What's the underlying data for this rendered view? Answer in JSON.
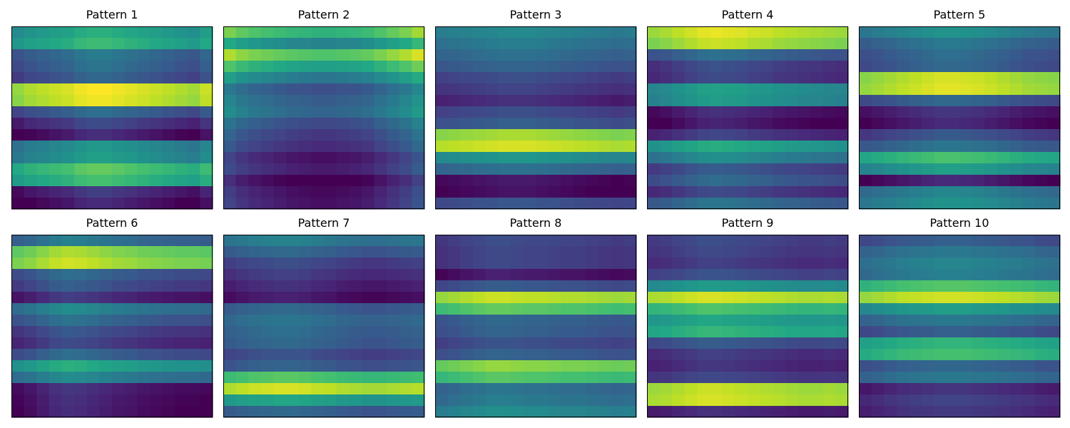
{
  "chart_data": [
    {
      "type": "heatmap",
      "title": "Pattern 1",
      "rows": 16,
      "cols": 16,
      "colormap": "viridis",
      "value_range": [
        0,
        1
      ],
      "grid": false,
      "row_levels": [
        0.55,
        0.6,
        0.33,
        0.3,
        0.25,
        0.92,
        0.9,
        0.28,
        0.15,
        0.05,
        0.45,
        0.48,
        0.68,
        0.62,
        0.1,
        0.04
      ],
      "col_mod": [
        -0.08,
        -0.04,
        -0.02,
        0.0,
        0.02,
        0.06,
        0.08,
        0.08,
        0.06,
        0.04,
        0.02,
        0.0,
        -0.02,
        -0.04,
        -0.06,
        0.0
      ]
    },
    {
      "type": "heatmap",
      "title": "Pattern 2",
      "rows": 16,
      "cols": 16,
      "colormap": "viridis",
      "value_range": [
        0,
        1
      ],
      "grid": false,
      "row_levels": [
        0.7,
        0.5,
        0.78,
        0.62,
        0.45,
        0.3,
        0.35,
        0.38,
        0.28,
        0.22,
        0.18,
        0.1,
        0.13,
        0.03,
        0.08,
        0.1
      ],
      "col_mod": [
        0.1,
        0.05,
        0.02,
        0.0,
        -0.02,
        -0.04,
        -0.05,
        -0.06,
        -0.06,
        -0.05,
        -0.04,
        -0.02,
        0.02,
        0.06,
        0.1,
        0.16
      ]
    },
    {
      "type": "heatmap",
      "title": "Pattern 3",
      "rows": 16,
      "cols": 16,
      "colormap": "viridis",
      "value_range": [
        0,
        1
      ],
      "grid": false,
      "row_levels": [
        0.45,
        0.4,
        0.35,
        0.3,
        0.22,
        0.18,
        0.12,
        0.22,
        0.28,
        0.85,
        0.92,
        0.5,
        0.35,
        0.05,
        0.03,
        0.25
      ],
      "col_mod": [
        -0.03,
        -0.02,
        -0.01,
        0.0,
        0.01,
        0.02,
        0.02,
        0.02,
        0.01,
        0.0,
        -0.01,
        -0.02,
        -0.03,
        -0.04,
        -0.05,
        -0.04
      ]
    },
    {
      "type": "heatmap",
      "title": "Pattern 4",
      "rows": 16,
      "cols": 16,
      "colormap": "viridis",
      "value_range": [
        0,
        1
      ],
      "grid": false,
      "row_levels": [
        0.9,
        0.85,
        0.3,
        0.18,
        0.16,
        0.5,
        0.48,
        0.07,
        0.03,
        0.14,
        0.55,
        0.42,
        0.22,
        0.28,
        0.16,
        0.32
      ],
      "col_mod": [
        -0.05,
        -0.03,
        0.0,
        0.03,
        0.06,
        0.07,
        0.06,
        0.05,
        0.03,
        0.02,
        0.0,
        -0.01,
        -0.02,
        -0.03,
        -0.04,
        -0.05
      ]
    },
    {
      "type": "heatmap",
      "title": "Pattern 5",
      "rows": 16,
      "cols": 16,
      "colormap": "viridis",
      "value_range": [
        0,
        1
      ],
      "grid": false,
      "row_levels": [
        0.45,
        0.35,
        0.3,
        0.28,
        0.88,
        0.9,
        0.28,
        0.1,
        0.06,
        0.22,
        0.33,
        0.65,
        0.5,
        0.06,
        0.4,
        0.45
      ],
      "col_mod": [
        -0.06,
        -0.04,
        -0.02,
        0.0,
        0.02,
        0.04,
        0.06,
        0.06,
        0.05,
        0.04,
        0.02,
        0.0,
        -0.02,
        -0.04,
        -0.05,
        -0.06
      ]
    },
    {
      "type": "heatmap",
      "title": "Pattern 6",
      "rows": 16,
      "cols": 16,
      "colormap": "viridis",
      "value_range": [
        0,
        1
      ],
      "grid": false,
      "row_levels": [
        0.35,
        0.8,
        0.85,
        0.28,
        0.22,
        0.1,
        0.4,
        0.3,
        0.2,
        0.15,
        0.28,
        0.55,
        0.4,
        0.08,
        0.06,
        0.05
      ],
      "col_mod": [
        -0.05,
        -0.02,
        0.02,
        0.06,
        0.08,
        0.07,
        0.05,
        0.03,
        0.01,
        0.0,
        -0.02,
        -0.03,
        -0.04,
        -0.05,
        -0.05,
        -0.06
      ]
    },
    {
      "type": "heatmap",
      "title": "Pattern 7",
      "rows": 16,
      "cols": 16,
      "colormap": "viridis",
      "value_range": [
        0,
        1
      ],
      "grid": false,
      "row_levels": [
        0.4,
        0.3,
        0.2,
        0.15,
        0.1,
        0.05,
        0.3,
        0.35,
        0.32,
        0.3,
        0.22,
        0.28,
        0.7,
        0.9,
        0.55,
        0.3
      ],
      "col_mod": [
        -0.02,
        0.0,
        0.02,
        0.03,
        0.04,
        0.04,
        0.03,
        0.01,
        0.0,
        -0.02,
        -0.03,
        -0.04,
        -0.04,
        -0.03,
        -0.02,
        -0.01
      ]
    },
    {
      "type": "heatmap",
      "title": "Pattern 8",
      "rows": 16,
      "cols": 16,
      "colormap": "viridis",
      "value_range": [
        0,
        1
      ],
      "grid": false,
      "row_levels": [
        0.2,
        0.18,
        0.18,
        0.05,
        0.25,
        0.88,
        0.72,
        0.3,
        0.28,
        0.22,
        0.28,
        0.8,
        0.7,
        0.35,
        0.38,
        0.45
      ],
      "col_mod": [
        -0.04,
        -0.02,
        0.0,
        0.02,
        0.04,
        0.04,
        0.03,
        0.02,
        0.02,
        0.01,
        0.0,
        0.0,
        -0.01,
        -0.02,
        -0.03,
        -0.02
      ]
    },
    {
      "type": "heatmap",
      "title": "Pattern 9",
      "rows": 16,
      "cols": 16,
      "colormap": "viridis",
      "value_range": [
        0,
        1
      ],
      "grid": false,
      "row_levels": [
        0.2,
        0.18,
        0.15,
        0.22,
        0.5,
        0.9,
        0.68,
        0.55,
        0.62,
        0.25,
        0.15,
        0.12,
        0.18,
        0.88,
        0.9,
        0.1
      ],
      "col_mod": [
        -0.03,
        -0.02,
        0.0,
        0.02,
        0.04,
        0.04,
        0.03,
        0.02,
        0.01,
        0.0,
        -0.01,
        -0.02,
        -0.03,
        -0.03,
        -0.02,
        -0.03
      ]
    },
    {
      "type": "heatmap",
      "title": "Pattern 10",
      "rows": 16,
      "cols": 16,
      "colormap": "viridis",
      "value_range": [
        0,
        1
      ],
      "grid": false,
      "row_levels": [
        0.25,
        0.35,
        0.4,
        0.38,
        0.68,
        0.88,
        0.5,
        0.35,
        0.25,
        0.6,
        0.65,
        0.28,
        0.35,
        0.1,
        0.15,
        0.12
      ],
      "col_mod": [
        -0.04,
        -0.02,
        0.0,
        0.02,
        0.03,
        0.04,
        0.05,
        0.05,
        0.05,
        0.04,
        0.03,
        0.02,
        0.01,
        0.0,
        -0.02,
        -0.03
      ]
    }
  ]
}
